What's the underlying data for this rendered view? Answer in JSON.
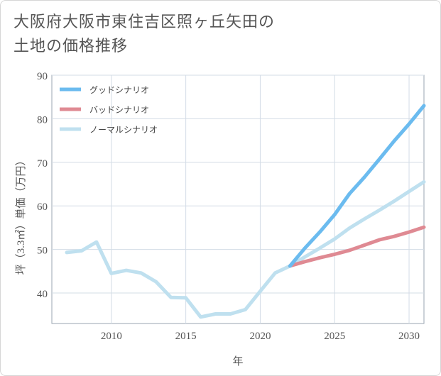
{
  "title_lines": [
    "大阪府大阪市東住吉区照ヶ丘矢田の",
    "土地の価格推移"
  ],
  "chart_data": {
    "type": "line",
    "title": "大阪府大阪市東住吉区照ヶ丘矢田の土地の価格推移",
    "xlabel": "年",
    "ylabel": "坪（3.3㎡）単価（万円）",
    "xlim": [
      2006,
      2031
    ],
    "ylim": [
      33,
      90
    ],
    "xticks": [
      2010,
      2015,
      2020,
      2025,
      2030
    ],
    "yticks": [
      40,
      50,
      60,
      70,
      80,
      90
    ],
    "grid": true,
    "legend_position": "top-left",
    "series": [
      {
        "name": "グッドシナリオ",
        "color": "#6bbbef",
        "x": [
          2022,
          2023,
          2024,
          2025,
          2026,
          2027,
          2028,
          2029,
          2030,
          2031
        ],
        "values": [
          46.2,
          50.3,
          54.0,
          58.0,
          62.8,
          66.6,
          70.7,
          74.9,
          78.8,
          83.0
        ]
      },
      {
        "name": "バッドシナリオ",
        "color": "#df8a93",
        "x": [
          2022,
          2023,
          2024,
          2025,
          2026,
          2027,
          2028,
          2029,
          2030,
          2031
        ],
        "values": [
          46.2,
          47.2,
          48.1,
          48.9,
          49.8,
          51.0,
          52.2,
          53.0,
          54.0,
          55.1
        ]
      },
      {
        "name": "ノーマルシナリオ",
        "color": "#bfe0ef",
        "x": [
          2007,
          2008,
          2009,
          2010,
          2011,
          2012,
          2013,
          2014,
          2015,
          2016,
          2017,
          2018,
          2019,
          2020,
          2021,
          2022,
          2023,
          2024,
          2025,
          2026,
          2027,
          2028,
          2029,
          2030,
          2031
        ],
        "values": [
          49.3,
          49.7,
          51.7,
          44.5,
          45.2,
          44.6,
          42.6,
          39.0,
          38.9,
          34.5,
          35.2,
          35.2,
          36.2,
          40.4,
          44.6,
          46.2,
          48.3,
          50.3,
          52.4,
          54.9,
          57.0,
          59.0,
          61.1,
          63.3,
          65.5
        ]
      }
    ]
  }
}
